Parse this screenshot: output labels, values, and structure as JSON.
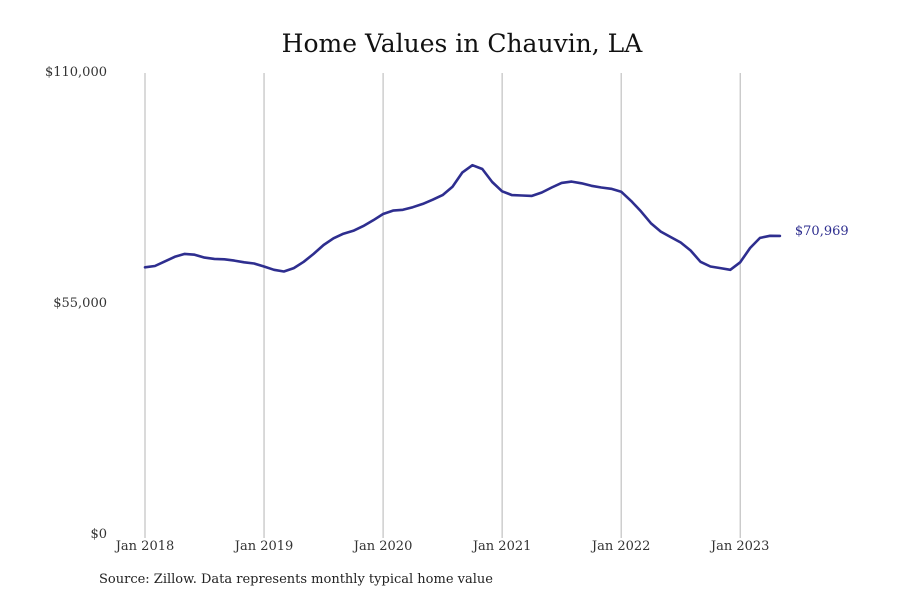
{
  "chart_data": {
    "type": "line",
    "title": "Home Values in Chauvin, LA",
    "xlabel": "",
    "ylabel": "",
    "x_ticks": [
      "Jan 2018",
      "Jan 2019",
      "Jan 2020",
      "Jan 2021",
      "Jan 2022",
      "Jan 2023"
    ],
    "y_ticks": [
      {
        "value": 110000,
        "label": "$110,000"
      },
      {
        "value": 55000,
        "label": "$55,000"
      },
      {
        "value": 0,
        "label": "$0"
      }
    ],
    "ylim": [
      0,
      110000
    ],
    "x_start": "2018-01",
    "grid": "vertical lines at each January",
    "line_color": "#2e2e8f",
    "series": [
      {
        "values": [
          63500,
          63800,
          64900,
          66000,
          66700,
          66500,
          65800,
          65500,
          65400,
          65100,
          64700,
          64400,
          63700,
          62900,
          62500,
          63300,
          64800,
          66700,
          68800,
          70400,
          71500,
          72200,
          73300,
          74700,
          76200,
          77000,
          77200,
          77800,
          78600,
          79600,
          80700,
          82700,
          86100,
          87800,
          86900,
          83800,
          81600,
          80700,
          80600,
          80500,
          81300,
          82500,
          83600,
          83900,
          83500,
          82900,
          82500,
          82200,
          81500,
          79300,
          76800,
          74000,
          72000,
          70700,
          69400,
          67500,
          64800,
          63700,
          63300,
          62900,
          64700,
          68100,
          70500,
          71000,
          70969
        ]
      }
    ],
    "end_label": "$70,969"
  },
  "source": "Source: Zillow. Data represents monthly typical home value"
}
